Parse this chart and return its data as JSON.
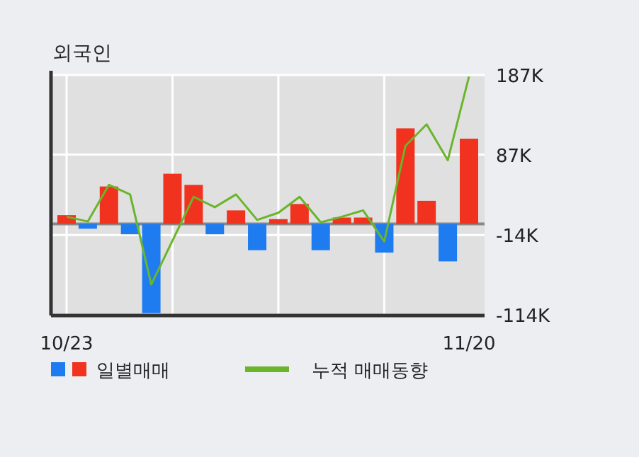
{
  "chart_data": {
    "type": "bar",
    "title": "외국인",
    "categories": [
      "10/23",
      null,
      null,
      null,
      null,
      null,
      null,
      null,
      null,
      null,
      null,
      null,
      null,
      null,
      null,
      null,
      null,
      null,
      null,
      "11/20"
    ],
    "series": [
      {
        "name": "일별매매",
        "type": "bar",
        "values": [
          11,
          -6,
          47,
          -13,
          -112,
          63,
          49,
          -13,
          17,
          -33,
          6,
          25,
          -33,
          8,
          8,
          -36,
          120,
          29,
          -47,
          107
        ],
        "colors": [
          "#f0321e",
          "#1e7cf0",
          "#f0321e",
          "#1e7cf0",
          "#1e7cf0",
          "#f0321e",
          "#f0321e",
          "#1e7cf0",
          "#f0321e",
          "#1e7cf0",
          "#f0321e",
          "#f0321e",
          "#1e7cf0",
          "#f0321e",
          "#f0321e",
          "#1e7cf0",
          "#f0321e",
          "#f0321e",
          "#1e7cf0",
          "#f0321e"
        ]
      },
      {
        "name": "누적 매매동향",
        "type": "line",
        "color": "#6ab52a",
        "values": [
          9,
          3,
          49,
          37,
          -76,
          -21,
          34,
          21,
          37,
          5,
          14,
          34,
          2,
          9,
          17,
          -22,
          98,
          125,
          80,
          185
        ]
      }
    ],
    "ylim": [
      -115,
      187
    ],
    "yticks": [
      {
        "value": 187,
        "label": "187K"
      },
      {
        "value": 87,
        "label": "87K"
      },
      {
        "value": -14,
        "label": "-14K"
      },
      {
        "value": -114,
        "label": "-114K"
      }
    ],
    "grid": true,
    "legend": "bottom"
  }
}
